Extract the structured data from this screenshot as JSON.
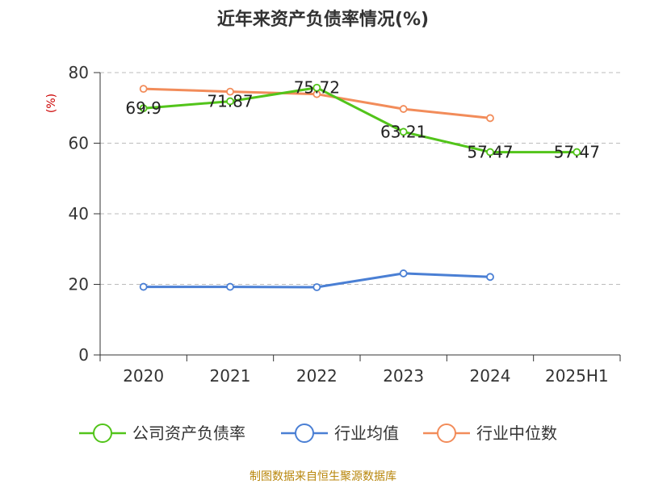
{
  "title": "近年来资产负债率情况(%)",
  "source": "制图数据来自恒生聚源数据库",
  "chart_data": {
    "type": "line",
    "ylabel": "(%)",
    "ylim": [
      0,
      80
    ],
    "yticks": [
      0,
      20,
      40,
      60,
      80
    ],
    "categories": [
      "2020",
      "2021",
      "2022",
      "2023",
      "2024",
      "2025H1"
    ],
    "grid": true,
    "legend_position": "bottom",
    "series": [
      {
        "name": "公司资产负债率",
        "color": "#52c41a",
        "values": [
          69.9,
          71.87,
          75.72,
          63.21,
          57.47,
          57.47
        ],
        "labels": [
          "69.9",
          "71.87",
          "75.72",
          "63.21",
          "57.47",
          "57.47"
        ]
      },
      {
        "name": "行业均值",
        "color": "#4a7fd4",
        "values": [
          19.3,
          19.3,
          19.2,
          23.1,
          22.1,
          null
        ]
      },
      {
        "name": "行业中位数",
        "color": "#f28c5a",
        "values": [
          75.4,
          74.6,
          73.9,
          69.7,
          67.1,
          null
        ]
      }
    ]
  }
}
